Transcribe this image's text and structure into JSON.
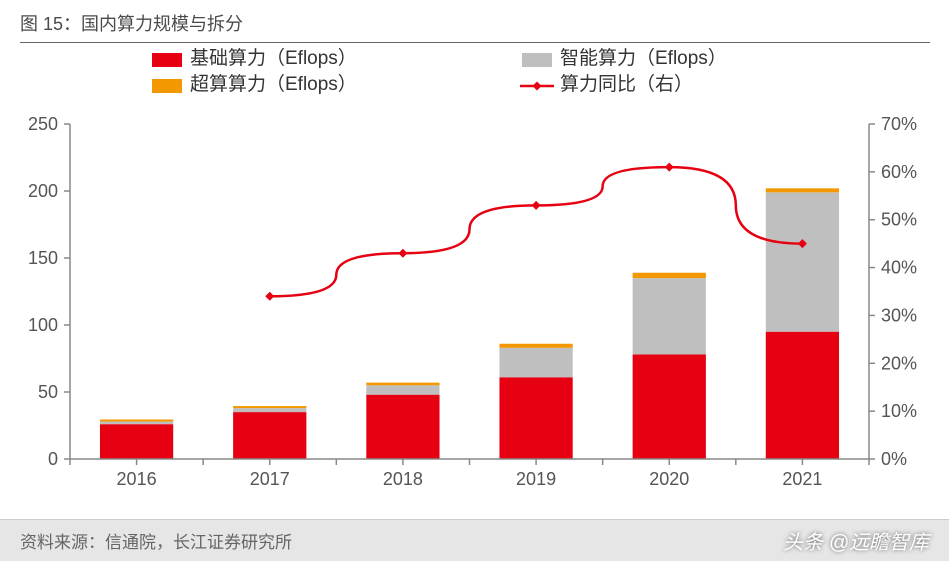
{
  "title": {
    "prefix": "图 15：",
    "text": "国内算力规模与拆分"
  },
  "footer": {
    "source_label": "资料来源：",
    "source_text": "信通院，长江证券研究所",
    "watermark_prefix": "头条",
    "watermark_text": "@远瞻智库"
  },
  "chart": {
    "type": "stacked-bar-with-line",
    "categories": [
      "2016",
      "2017",
      "2018",
      "2019",
      "2020",
      "2021"
    ],
    "series_bars": [
      {
        "name": "基础算力（Eflops）",
        "color": "#e60012",
        "values": [
          26,
          35,
          48,
          61,
          78,
          95
        ]
      },
      {
        "name": "智能算力（Eflops）",
        "color": "#bfbfbf",
        "values": [
          2,
          3,
          7,
          22,
          57,
          104
        ]
      },
      {
        "name": "超算算力（Eflops）",
        "color": "#f39800",
        "values": [
          1.5,
          1.5,
          2,
          3,
          4,
          3
        ]
      }
    ],
    "series_line": {
      "name": "算力同比（右）",
      "color": "#e60012",
      "marker": "diamond",
      "marker_size": 9,
      "line_width": 2.5,
      "values": [
        null,
        34,
        43,
        53,
        61,
        45
      ]
    },
    "y_left": {
      "min": 0,
      "max": 250,
      "step": 50,
      "labels": [
        "0",
        "50",
        "100",
        "150",
        "200",
        "250"
      ]
    },
    "y_right": {
      "min": 0,
      "max": 70,
      "step": 10,
      "labels": [
        "0%",
        "10%",
        "20%",
        "30%",
        "40%",
        "50%",
        "60%",
        "70%"
      ]
    },
    "colors": {
      "axis": "#888888",
      "grid": "#d9d9d9",
      "background": "#ffffff",
      "text": "#555555"
    },
    "bar_width_ratio": 0.55,
    "legend_fontsize": 19,
    "axis_fontsize": 18
  }
}
